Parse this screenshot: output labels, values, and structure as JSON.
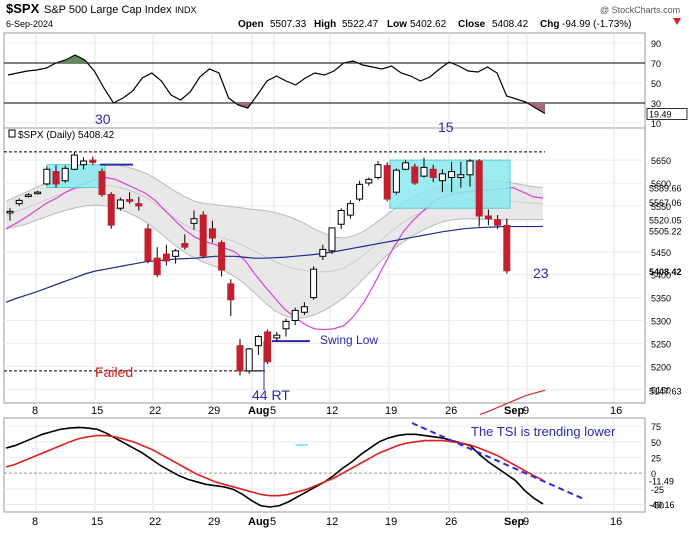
{
  "header": {
    "symbol": "$SPX",
    "name": "S&P 500 Large Cap Index",
    "exchange": "INDX",
    "date": "6-Sep-2024",
    "copyright": "@ StockCharts.com",
    "open_label": "Open",
    "open": "5507.33",
    "high_label": "High",
    "high": "5522.47",
    "low_label": "Low",
    "low": "5402.62",
    "close_label": "Close",
    "close": "5408.42",
    "chg_label": "Chg",
    "chg": "-94.99 (-1.73%)",
    "chg_icon": "down-triangle-icon"
  },
  "chart_data": [
    {
      "type": "line",
      "panel": "top-indicator",
      "ylim": [
        5,
        100
      ],
      "y_ticks": [
        "90",
        "70",
        "50",
        "30",
        "10"
      ],
      "reference_lines": [
        70,
        30
      ],
      "last_value_label": "19.49",
      "values": [
        58,
        60,
        62,
        63,
        65,
        70,
        73,
        78,
        73,
        62,
        45,
        30,
        35,
        42,
        55,
        60,
        52,
        38,
        33,
        41,
        56,
        64,
        60,
        35,
        28,
        25,
        38,
        52,
        57,
        52,
        48,
        55,
        60,
        58,
        62,
        70,
        72,
        68,
        66,
        64,
        67,
        60,
        57,
        52,
        56,
        64,
        71,
        67,
        62,
        61,
        66,
        60,
        37,
        34,
        31,
        25,
        19.49
      ]
    },
    {
      "type": "candlestick",
      "panel": "price",
      "legend": "$SPX (Daily) 5408.42",
      "ylim": [
        5120,
        5720
      ],
      "y_ticks": [
        "5650",
        "5600",
        "5550",
        "5450",
        "5400",
        "5350",
        "5300",
        "5250",
        "5200",
        "5150"
      ],
      "right_labels": [
        "5589.66",
        "5567.06",
        "5520.05",
        "5505.22",
        "5408.42",
        "5147.63"
      ],
      "x_ticks": [
        "8",
        "15",
        "22",
        "29",
        "Aug",
        "5",
        "12",
        "19",
        "26",
        "Sep",
        "9",
        "16"
      ],
      "candles": [
        {
          "o": 5535,
          "h": 5545,
          "l": 5518,
          "c": 5538
        },
        {
          "o": 5555,
          "h": 5566,
          "l": 5550,
          "c": 5562
        },
        {
          "o": 5572,
          "h": 5578,
          "l": 5568,
          "c": 5574
        },
        {
          "o": 5578,
          "h": 5583,
          "l": 5575,
          "c": 5580
        },
        {
          "o": 5598,
          "h": 5636,
          "l": 5595,
          "c": 5630
        },
        {
          "o": 5625,
          "h": 5639,
          "l": 5590,
          "c": 5598
        },
        {
          "o": 5605,
          "h": 5638,
          "l": 5600,
          "c": 5632
        },
        {
          "o": 5630,
          "h": 5668,
          "l": 5628,
          "c": 5661
        },
        {
          "o": 5640,
          "h": 5656,
          "l": 5630,
          "c": 5648
        },
        {
          "o": 5650,
          "h": 5658,
          "l": 5640,
          "c": 5645
        },
        {
          "o": 5625,
          "h": 5632,
          "l": 5570,
          "c": 5575
        },
        {
          "o": 5575,
          "h": 5580,
          "l": 5500,
          "c": 5508
        },
        {
          "o": 5545,
          "h": 5568,
          "l": 5540,
          "c": 5563
        },
        {
          "o": 5564,
          "h": 5580,
          "l": 5555,
          "c": 5560
        },
        {
          "o": 5555,
          "h": 5570,
          "l": 5540,
          "c": 5550
        },
        {
          "o": 5500,
          "h": 5510,
          "l": 5425,
          "c": 5430
        },
        {
          "o": 5436,
          "h": 5460,
          "l": 5395,
          "c": 5400
        },
        {
          "o": 5445,
          "h": 5465,
          "l": 5420,
          "c": 5430
        },
        {
          "o": 5440,
          "h": 5456,
          "l": 5424,
          "c": 5452
        },
        {
          "o": 5468,
          "h": 5488,
          "l": 5455,
          "c": 5460
        },
        {
          "o": 5512,
          "h": 5540,
          "l": 5498,
          "c": 5522
        },
        {
          "o": 5530,
          "h": 5538,
          "l": 5436,
          "c": 5441
        },
        {
          "o": 5500,
          "h": 5518,
          "l": 5470,
          "c": 5480
        },
        {
          "o": 5470,
          "h": 5475,
          "l": 5396,
          "c": 5410
        },
        {
          "o": 5380,
          "h": 5390,
          "l": 5310,
          "c": 5345
        },
        {
          "o": 5245,
          "h": 5260,
          "l": 5180,
          "c": 5190
        },
        {
          "o": 5190,
          "h": 5240,
          "l": 5184,
          "c": 5238
        },
        {
          "o": 5245,
          "h": 5268,
          "l": 5225,
          "c": 5265
        },
        {
          "o": 5275,
          "h": 5280,
          "l": 5205,
          "c": 5210
        },
        {
          "o": 5262,
          "h": 5275,
          "l": 5253,
          "c": 5268
        },
        {
          "o": 5282,
          "h": 5304,
          "l": 5265,
          "c": 5298
        },
        {
          "o": 5300,
          "h": 5328,
          "l": 5290,
          "c": 5322
        },
        {
          "o": 5318,
          "h": 5340,
          "l": 5312,
          "c": 5330
        },
        {
          "o": 5350,
          "h": 5418,
          "l": 5345,
          "c": 5412
        },
        {
          "o": 5440,
          "h": 5465,
          "l": 5432,
          "c": 5455
        },
        {
          "o": 5452,
          "h": 5500,
          "l": 5445,
          "c": 5502
        },
        {
          "o": 5510,
          "h": 5545,
          "l": 5500,
          "c": 5540
        },
        {
          "o": 5530,
          "h": 5562,
          "l": 5522,
          "c": 5555
        },
        {
          "o": 5565,
          "h": 5605,
          "l": 5560,
          "c": 5597
        },
        {
          "o": 5600,
          "h": 5612,
          "l": 5594,
          "c": 5608
        },
        {
          "o": 5612,
          "h": 5648,
          "l": 5608,
          "c": 5640
        },
        {
          "o": 5638,
          "h": 5645,
          "l": 5560,
          "c": 5565
        },
        {
          "o": 5580,
          "h": 5632,
          "l": 5575,
          "c": 5628
        },
        {
          "o": 5630,
          "h": 5650,
          "l": 5628,
          "c": 5644
        },
        {
          "o": 5635,
          "h": 5642,
          "l": 5596,
          "c": 5600
        },
        {
          "o": 5615,
          "h": 5655,
          "l": 5612,
          "c": 5634
        },
        {
          "o": 5630,
          "h": 5640,
          "l": 5602,
          "c": 5612
        },
        {
          "o": 5605,
          "h": 5630,
          "l": 5580,
          "c": 5620
        },
        {
          "o": 5612,
          "h": 5646,
          "l": 5580,
          "c": 5625
        },
        {
          "o": 5612,
          "h": 5646,
          "l": 5590,
          "c": 5618
        },
        {
          "o": 5618,
          "h": 5652,
          "l": 5592,
          "c": 5648
        },
        {
          "o": 5648,
          "h": 5652,
          "l": 5505,
          "c": 5528
        },
        {
          "o": 5528,
          "h": 5542,
          "l": 5508,
          "c": 5522
        },
        {
          "o": 5520,
          "h": 5530,
          "l": 5500,
          "c": 5508
        },
        {
          "o": 5507.33,
          "h": 5522.47,
          "l": 5402.62,
          "c": 5408.42
        }
      ],
      "sma_short": [
        5500,
        5512,
        5525,
        5540,
        5555,
        5566,
        5580,
        5590,
        5600,
        5608,
        5612,
        5608,
        5598,
        5588,
        5578,
        5562,
        5540,
        5518,
        5497,
        5482,
        5472,
        5466,
        5458,
        5450,
        5432,
        5402,
        5375,
        5350,
        5325,
        5308,
        5292,
        5282,
        5280,
        5282,
        5289,
        5310,
        5340,
        5378,
        5420,
        5460,
        5495,
        5520,
        5540,
        5560,
        5570,
        5576,
        5580,
        5582,
        5585,
        5585,
        5588,
        5590,
        5580,
        5570,
        5567.06
      ],
      "sma_long": [
        5340,
        5348,
        5355,
        5362,
        5370,
        5378,
        5386,
        5394,
        5402,
        5408,
        5412,
        5416,
        5420,
        5424,
        5428,
        5430,
        5432,
        5434,
        5435,
        5436,
        5438,
        5440,
        5440,
        5440,
        5438,
        5436,
        5436,
        5437,
        5438,
        5440,
        5442,
        5444,
        5447,
        5450,
        5454,
        5458,
        5462,
        5466,
        5470,
        5474,
        5478,
        5482,
        5486,
        5490,
        5494,
        5497,
        5500,
        5502,
        5503,
        5504,
        5505,
        5505,
        5505,
        5505,
        5505.22
      ],
      "sma_200_tail": [
        5095,
        5100,
        5106,
        5112,
        5118,
        5124,
        5130,
        5136,
        5140,
        5144,
        5147.63
      ],
      "bollinger_upper": [
        5560,
        5570,
        5580,
        5590,
        5600,
        5610,
        5620,
        5628,
        5632,
        5636,
        5640,
        5640,
        5636,
        5630,
        5622,
        5610,
        5596,
        5582,
        5570,
        5560,
        5555,
        5553,
        5550,
        5548,
        5545,
        5542,
        5540,
        5536,
        5530,
        5522,
        5512,
        5500,
        5490,
        5482,
        5480,
        5485,
        5495,
        5510,
        5526,
        5542,
        5558,
        5570,
        5580,
        5588,
        5594,
        5598,
        5602,
        5604,
        5605,
        5605,
        5604,
        5600,
        5596,
        5592,
        5589.66
      ],
      "bollinger_lower": [
        5500,
        5505,
        5510,
        5518,
        5526,
        5534,
        5540,
        5546,
        5550,
        5552,
        5550,
        5545,
        5538,
        5528,
        5516,
        5500,
        5482,
        5464,
        5448,
        5436,
        5426,
        5418,
        5408,
        5396,
        5380,
        5360,
        5340,
        5322,
        5310,
        5305,
        5306,
        5312,
        5322,
        5335,
        5350,
        5370,
        5392,
        5414,
        5436,
        5456,
        5472,
        5486,
        5498,
        5508,
        5516,
        5520,
        5522,
        5522,
        5521,
        5520,
        5520,
        5520,
        5520,
        5520,
        5520.05
      ],
      "annotations": {
        "count_top_left": "30",
        "count_top_right": "15",
        "count_right": "23",
        "swing_low": "Swing Low",
        "failed": "Failed",
        "count_bottom": "44 RT"
      }
    },
    {
      "type": "line",
      "panel": "tsi",
      "ylim": [
        -62,
        88
      ],
      "y_ticks": [
        "75",
        "50",
        "25",
        "0",
        "-25",
        "-50"
      ],
      "right_labels": [
        "-11.49",
        "-49.16"
      ],
      "annotation": "The TSI is trending lower",
      "series": [
        {
          "values": [
            40,
            44,
            50,
            56,
            62,
            66,
            70,
            72,
            73,
            72,
            70,
            64,
            56,
            48,
            40,
            32,
            22,
            12,
            4,
            -4,
            -10,
            -14,
            -18,
            -20,
            -22,
            -26,
            -34,
            -44,
            -52,
            -54,
            -52,
            -46,
            -38,
            -30,
            -22,
            -14,
            -4,
            8,
            18,
            30,
            40,
            50,
            56,
            60,
            62,
            62,
            60,
            58,
            56,
            52,
            48,
            44,
            30,
            18,
            8,
            -2,
            -12,
            -28,
            -40,
            -49.16
          ],
          "color": "#000000"
        },
        {
          "values": [
            10,
            14,
            20,
            26,
            32,
            38,
            44,
            50,
            55,
            58,
            60,
            60,
            58,
            54,
            50,
            44,
            38,
            30,
            22,
            14,
            6,
            -2,
            -8,
            -14,
            -18,
            -22,
            -26,
            -30,
            -34,
            -36,
            -36,
            -34,
            -30,
            -26,
            -20,
            -14,
            -8,
            0,
            8,
            16,
            24,
            32,
            38,
            44,
            48,
            50,
            52,
            52,
            52,
            50,
            48,
            45,
            40,
            34,
            28,
            20,
            12,
            4,
            -4,
            -11.49
          ],
          "color": "#e02020"
        }
      ]
    }
  ]
}
